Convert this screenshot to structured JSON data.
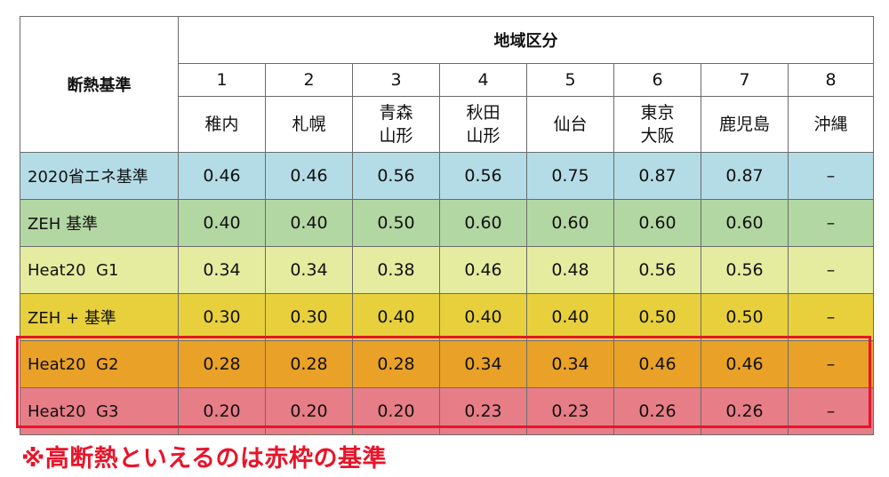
{
  "table": {
    "corner_label": "断熱基準",
    "region_header": "地域区分",
    "region_numbers": [
      "1",
      "2",
      "3",
      "4",
      "5",
      "6",
      "7",
      "8"
    ],
    "cities": [
      "稚内",
      "札幌",
      "青森\n山形",
      "秋田\n山形",
      "仙台",
      "東京\n大阪",
      "鹿児島",
      "沖縄"
    ],
    "rows": [
      {
        "label": "2020省エネ基準",
        "color": "#b4dce6",
        "values": [
          "0.46",
          "0.46",
          "0.56",
          "0.56",
          "0.75",
          "0.87",
          "0.87",
          "–"
        ]
      },
      {
        "label": "ZEH 基準",
        "color": "#b3d7a3",
        "values": [
          "0.40",
          "0.40",
          "0.50",
          "0.60",
          "0.60",
          "0.60",
          "0.60",
          "–"
        ]
      },
      {
        "label": "Heat20  G1",
        "color": "#e5ec9f",
        "values": [
          "0.34",
          "0.34",
          "0.38",
          "0.46",
          "0.48",
          "0.56",
          "0.56",
          "–"
        ]
      },
      {
        "label": "ZEH + 基準",
        "color": "#e7d03c",
        "values": [
          "0.30",
          "0.30",
          "0.40",
          "0.40",
          "0.40",
          "0.50",
          "0.50",
          "–"
        ]
      },
      {
        "label": "Heat20  G2",
        "color": "#e9a128",
        "values": [
          "0.28",
          "0.28",
          "0.28",
          "0.34",
          "0.34",
          "0.46",
          "0.46",
          "–"
        ]
      },
      {
        "label": "Heat20  G3",
        "color": "#e77d87",
        "values": [
          "0.20",
          "0.20",
          "0.20",
          "0.23",
          "0.23",
          "0.26",
          "0.26",
          "–"
        ]
      }
    ]
  },
  "note": "※高断熱といえるのは赤枠の基準",
  "colors": {
    "accent_red": "#e8142a"
  }
}
